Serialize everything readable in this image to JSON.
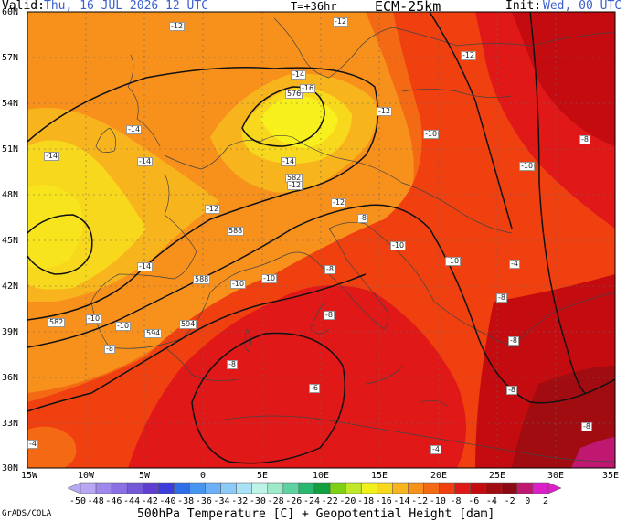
{
  "header": {
    "valid_label": "Valid:",
    "valid_value": "Thu, 16 JUL 2026  12 UTC",
    "forecast_hour": "T=+36hr",
    "model": "ECM-25km",
    "init_label": "Init:",
    "init_value": "Wed, 00 UTC"
  },
  "map": {
    "lat_labels": [
      "60N",
      "57N",
      "54N",
      "51N",
      "48N",
      "45N",
      "42N",
      "39N",
      "36N",
      "33N",
      "30N"
    ],
    "lon_labels": [
      "15W",
      "10W",
      "5W",
      "0",
      "5E",
      "10E",
      "15E",
      "20E",
      "25E",
      "30E",
      "35E"
    ],
    "contour_labels": [
      {
        "t": "-12"
      },
      {
        "t": "-12"
      },
      {
        "t": "-12"
      },
      {
        "t": "-14"
      },
      {
        "t": "-14"
      },
      {
        "t": "-14"
      },
      {
        "t": "-14"
      },
      {
        "t": "576"
      },
      {
        "t": "-16"
      },
      {
        "t": "-12"
      },
      {
        "t": "-10"
      },
      {
        "t": "-8"
      },
      {
        "t": "-10"
      },
      {
        "t": "-14"
      },
      {
        "t": "582"
      },
      {
        "t": "-12"
      },
      {
        "t": "-12"
      },
      {
        "t": "-12"
      },
      {
        "t": "588"
      },
      {
        "t": "-8"
      },
      {
        "t": "-10"
      },
      {
        "t": "-10"
      },
      {
        "t": "-14"
      },
      {
        "t": "588"
      },
      {
        "t": "-10"
      },
      {
        "t": "-10"
      },
      {
        "t": "594"
      },
      {
        "t": "-8"
      },
      {
        "t": "-8"
      },
      {
        "t": "-8"
      },
      {
        "t": "582"
      },
      {
        "t": "-10"
      },
      {
        "t": "-10"
      },
      {
        "t": "-8"
      },
      {
        "t": "594"
      },
      {
        "t": "-8"
      },
      {
        "t": "-6"
      },
      {
        "t": "-8"
      },
      {
        "t": "-8"
      },
      {
        "t": "-4"
      },
      {
        "t": "-4"
      },
      {
        "t": "-4"
      },
      {
        "t": "-8"
      }
    ]
  },
  "colorbar": {
    "labels": [
      "-50",
      "-48",
      "-46",
      "-44",
      "-42",
      "-40",
      "-38",
      "-36",
      "-34",
      "-32",
      "-30",
      "-28",
      "-26",
      "-24",
      "-22",
      "-20",
      "-18",
      "-16",
      "-14",
      "-12",
      "-10",
      "-8",
      "-6",
      "-4",
      "-2",
      "0",
      "2"
    ],
    "colors": [
      "#b8a8f4",
      "#9e88ee",
      "#8a70e4",
      "#7358d8",
      "#5e3fd0",
      "#3c3cdc",
      "#2e6ee8",
      "#4696f0",
      "#6cb0f8",
      "#8ccaf8",
      "#a8e2f4",
      "#bef4e8",
      "#9eeac8",
      "#5ed2a0",
      "#28b870",
      "#10a040",
      "#7ed014",
      "#c0e828",
      "#f0f01c",
      "#f8d81c",
      "#f8b41c",
      "#f8901c",
      "#f46a14",
      "#f04010",
      "#e01818",
      "#c40c10",
      "#a00c10",
      "#8c0a14",
      "#c01870",
      "#dc20c8"
    ],
    "title": "500hPa Temperature [C] + Geopotential Height [dam]"
  },
  "source": "GrADS/COLA"
}
